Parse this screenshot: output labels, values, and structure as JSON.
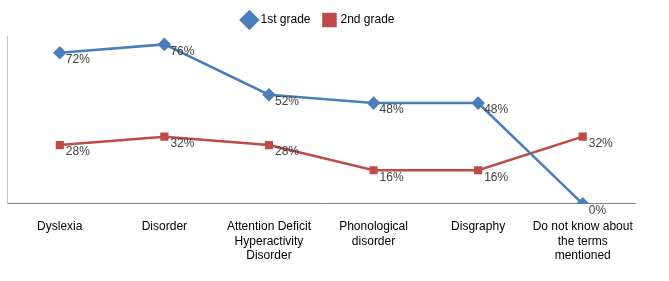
{
  "chart_data": {
    "type": "line",
    "categories": [
      "Dyslexia",
      "Disorder",
      "Attention Deficit Hyperactivity Disorder",
      "Phonological disorder",
      "Disgraphy",
      "Do not know about the terms mentioned"
    ],
    "series": [
      {
        "name": "1st grade",
        "color": "#4a7ebb",
        "marker": "diamond",
        "values": [
          72,
          76,
          52,
          48,
          48,
          0
        ],
        "value_labels": [
          "72%",
          "76%",
          "52%",
          "48%",
          "48%",
          "0%"
        ]
      },
      {
        "name": "2nd grade",
        "color": "#be4b48",
        "marker": "square",
        "values": [
          28,
          32,
          28,
          16,
          16,
          32
        ],
        "value_labels": [
          "28%",
          "32%",
          "28%",
          "16%",
          "16%",
          "32%"
        ]
      }
    ],
    "ylim": [
      0,
      80
    ],
    "grid": false,
    "legend": "top",
    "data_labels": true,
    "tick_labels": "x"
  }
}
